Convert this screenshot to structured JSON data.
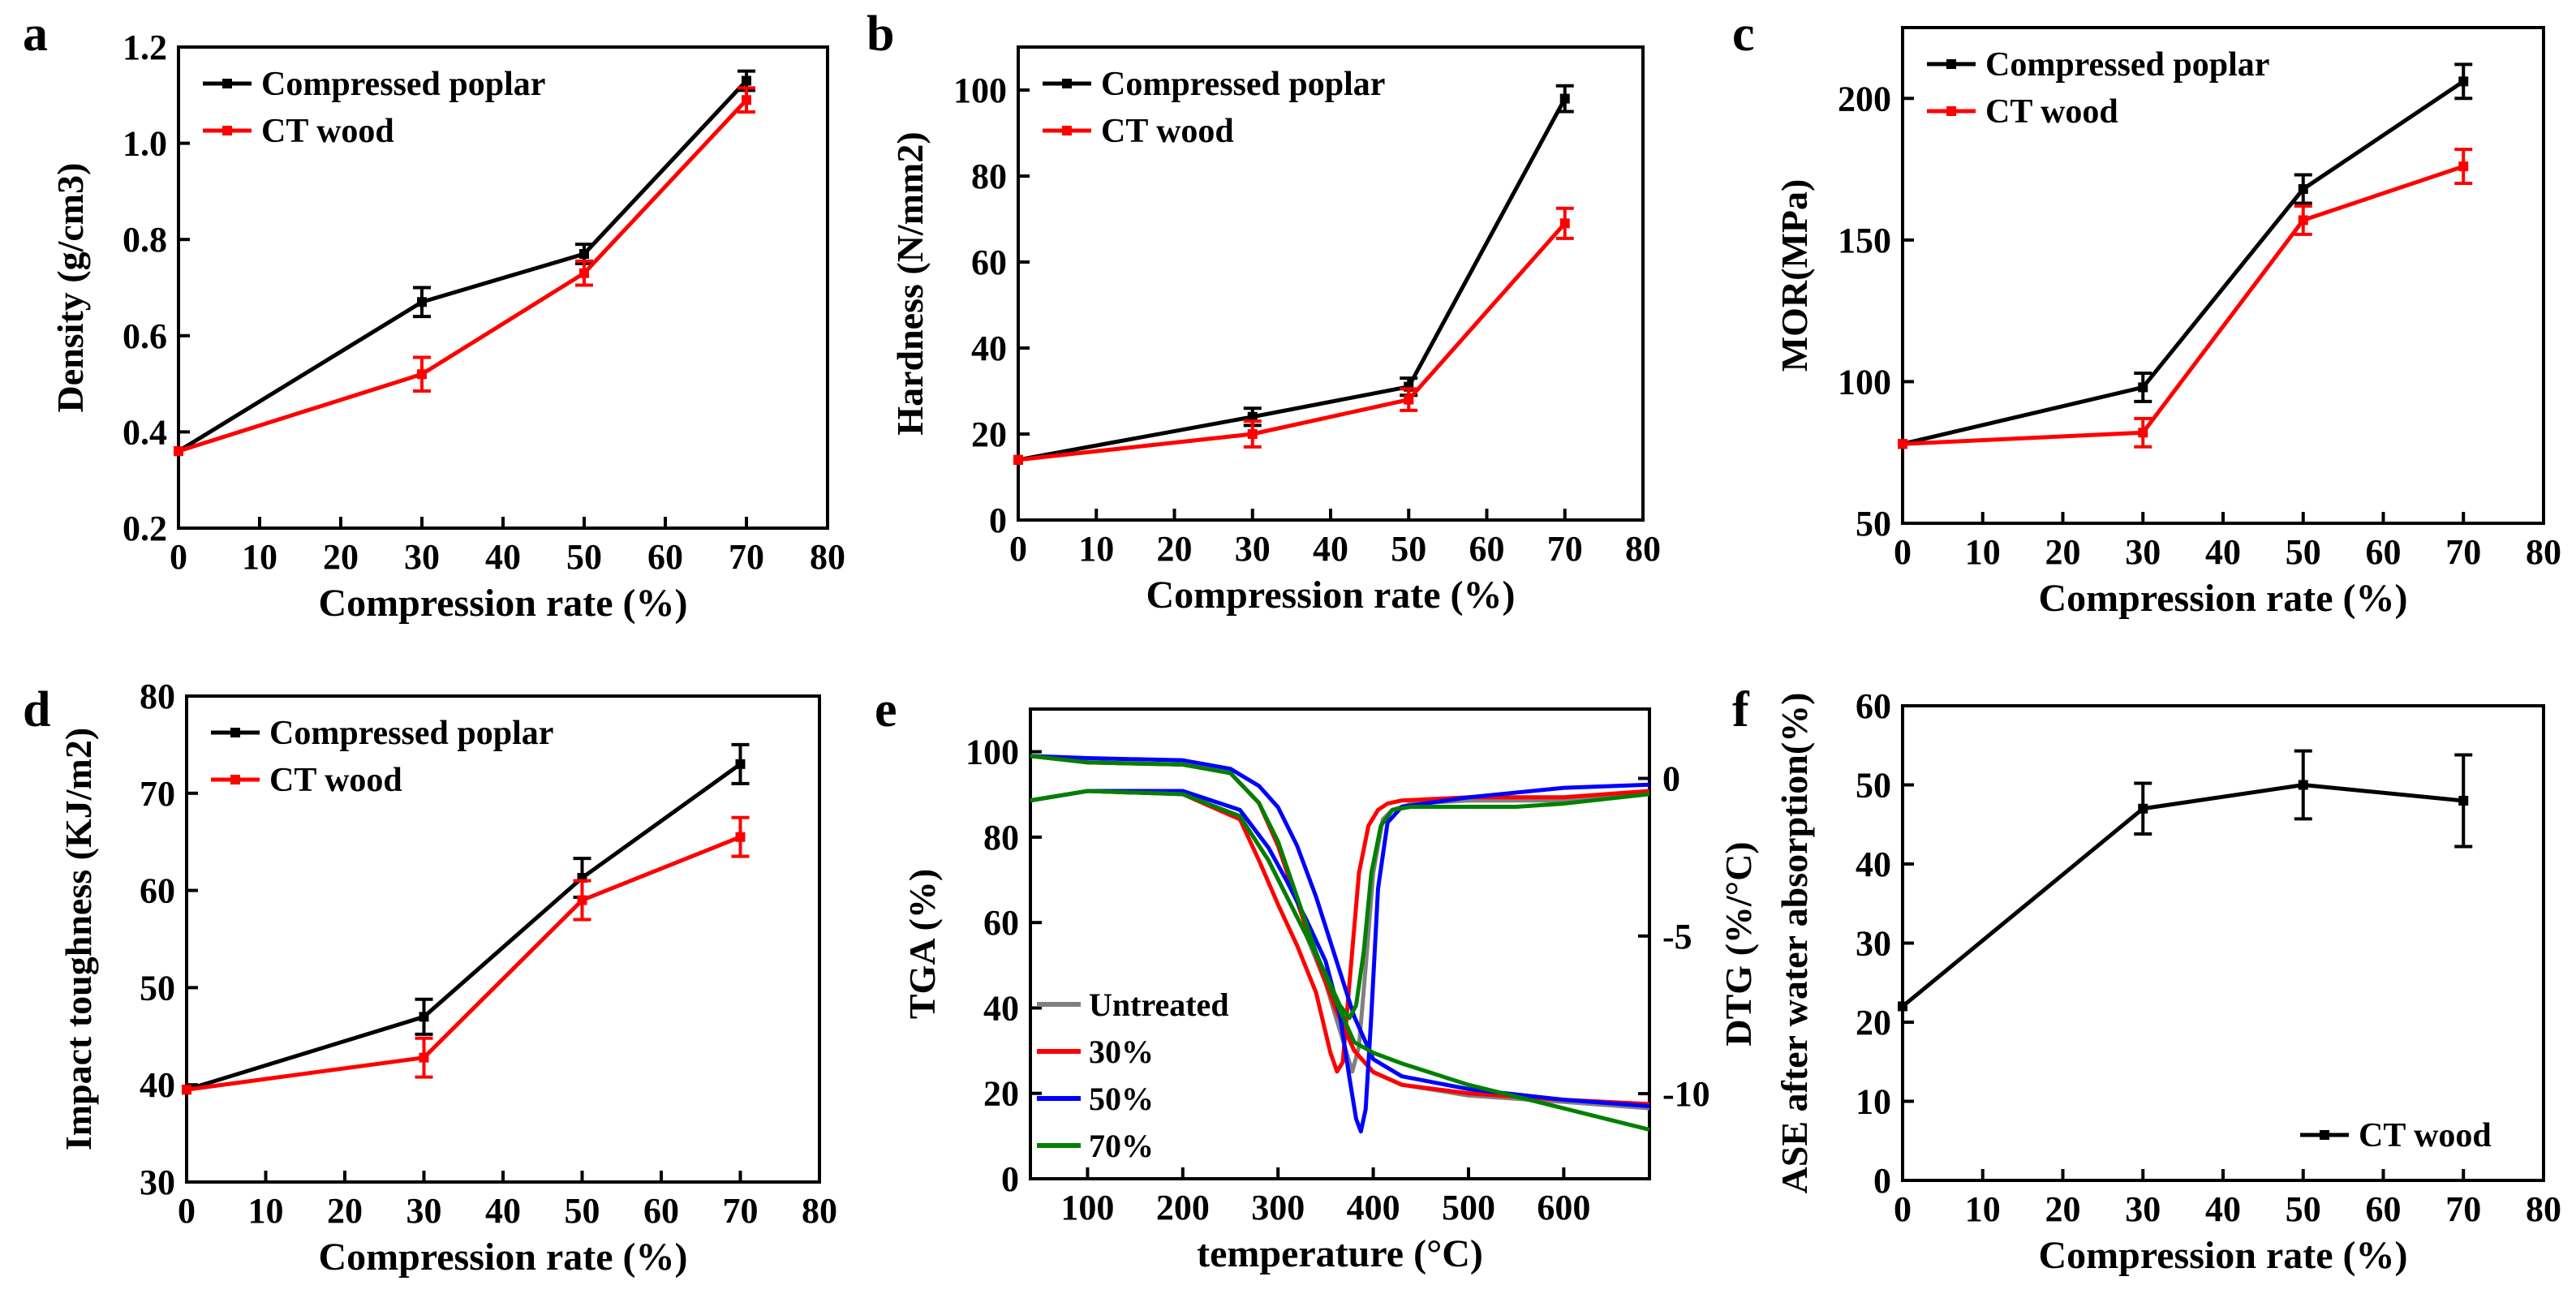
{
  "colors": {
    "black": "#000000",
    "red": "#ff0000",
    "gray": "#808080",
    "blue": "#0000ff",
    "green": "#008000"
  },
  "chart_data": [
    {
      "panel": "a",
      "type": "line",
      "xlabel": "Compression rate (%)",
      "ylabel": "Density (g/cm3)",
      "xlim": [
        0,
        80
      ],
      "ylim": [
        0.2,
        1.2
      ],
      "xticks": [
        "0",
        "10",
        "20",
        "30",
        "40",
        "50",
        "60",
        "70",
        "80"
      ],
      "yticks": [
        "0.2",
        "0.4",
        "0.6",
        "0.8",
        "1.0",
        "1.2"
      ],
      "legend_position": "top-left",
      "series": [
        {
          "name": "Compressed poplar",
          "color": "black",
          "x": [
            0,
            30,
            50,
            70
          ],
          "y": [
            0.36,
            0.67,
            0.77,
            1.13
          ],
          "err": [
            0,
            0.03,
            0.02,
            0.02
          ]
        },
        {
          "name": "CT wood",
          "color": "red",
          "x": [
            0,
            30,
            50,
            70
          ],
          "y": [
            0.36,
            0.52,
            0.73,
            1.09
          ],
          "err": [
            0,
            0.035,
            0.025,
            0.025
          ]
        }
      ]
    },
    {
      "panel": "b",
      "type": "line",
      "xlabel": "Compression rate (%)",
      "ylabel": "Hardness (N/mm2)",
      "xlim": [
        0,
        80
      ],
      "ylim": [
        0,
        110
      ],
      "xticks": [
        "0",
        "10",
        "20",
        "30",
        "40",
        "50",
        "60",
        "70",
        "80"
      ],
      "yticks": [
        "0",
        "20",
        "40",
        "60",
        "80",
        "100"
      ],
      "legend_position": "top-left",
      "series": [
        {
          "name": "Compressed poplar",
          "color": "black",
          "x": [
            0,
            30,
            50,
            70
          ],
          "y": [
            14,
            24,
            31,
            98
          ],
          "err": [
            0,
            2,
            2,
            3
          ]
        },
        {
          "name": "CT wood",
          "color": "red",
          "x": [
            0,
            30,
            50,
            70
          ],
          "y": [
            14,
            20,
            28,
            69
          ],
          "err": [
            0,
            3,
            2.5,
            3.5
          ]
        }
      ]
    },
    {
      "panel": "c",
      "type": "line",
      "xlabel": "Compression rate (%)",
      "ylabel": "MOR(MPa)",
      "xlim": [
        0,
        80
      ],
      "ylim": [
        50,
        225
      ],
      "xticks": [
        "0",
        "10",
        "20",
        "30",
        "40",
        "50",
        "60",
        "70",
        "80"
      ],
      "yticks": [
        "50",
        "100",
        "150",
        "200"
      ],
      "legend_position": "top-left",
      "series": [
        {
          "name": "Compressed poplar",
          "color": "black",
          "x": [
            0,
            30,
            50,
            70
          ],
          "y": [
            78,
            98,
            168,
            206
          ],
          "err": [
            0,
            5,
            5,
            6
          ]
        },
        {
          "name": "CT wood",
          "color": "red",
          "x": [
            0,
            30,
            50,
            70
          ],
          "y": [
            78,
            82,
            157,
            176
          ],
          "err": [
            0,
            5,
            5,
            6
          ]
        }
      ]
    },
    {
      "panel": "d",
      "type": "line",
      "xlabel": "Compression rate (%)",
      "ylabel": "Impact toughness (KJ/m2)",
      "xlim": [
        0,
        80
      ],
      "ylim": [
        30,
        80
      ],
      "xticks": [
        "0",
        "10",
        "20",
        "30",
        "40",
        "50",
        "60",
        "70",
        "80"
      ],
      "yticks": [
        "30",
        "40",
        "50",
        "60",
        "70",
        "80"
      ],
      "legend_position": "top-left",
      "series": [
        {
          "name": "Compressed poplar",
          "color": "black",
          "x": [
            0,
            30,
            50,
            70
          ],
          "y": [
            39.5,
            47,
            61.3,
            73
          ],
          "err": [
            0,
            1.8,
            2,
            2
          ]
        },
        {
          "name": "CT wood",
          "color": "red",
          "x": [
            0,
            30,
            50,
            70
          ],
          "y": [
            39.5,
            42.8,
            59,
            65.5
          ],
          "err": [
            0,
            2,
            2,
            2
          ]
        }
      ]
    },
    {
      "panel": "e",
      "type": "line",
      "xlabel": "temperature (°C)",
      "ylabel": "TGA (%)",
      "ylabel_right": "DTG (%/°C)",
      "xlim": [
        40,
        690
      ],
      "ylim": [
        0,
        110
      ],
      "ylim_right": [
        -12.7,
        2.2
      ],
      "xticks": [
        "100",
        "200",
        "300",
        "400",
        "500",
        "600"
      ],
      "yticks": [
        "0",
        "20",
        "40",
        "60",
        "80",
        "100"
      ],
      "yticks_right": [
        "0",
        "-5",
        "-10"
      ],
      "legend_position": "bottom-left",
      "series": [
        {
          "name": "Untreated",
          "color": "gray",
          "tga_x": [
            40,
            100,
            200,
            250,
            280,
            300,
            320,
            340,
            360,
            380,
            400,
            430,
            500,
            600,
            690
          ],
          "tga_y": [
            99,
            97.5,
            97,
            95,
            88,
            78,
            65,
            52,
            40,
            30,
            25,
            22,
            19.5,
            18,
            16.5
          ],
          "dtg_x": [
            40,
            100,
            200,
            260,
            290,
            310,
            330,
            350,
            365,
            378,
            385,
            392,
            400,
            410,
            420,
            440,
            500,
            600,
            690
          ],
          "dtg_y": [
            -0.7,
            -0.4,
            -0.5,
            -1.2,
            -2.6,
            -3.8,
            -5,
            -6.5,
            -8,
            -9.3,
            -8.5,
            -6,
            -3,
            -1.3,
            -1,
            -0.8,
            -0.7,
            -0.7,
            -0.4
          ]
        },
        {
          "name": "30%",
          "color": "red",
          "tga_x": [
            40,
            100,
            200,
            250,
            280,
            300,
            320,
            340,
            360,
            380,
            400,
            430,
            500,
            600,
            690
          ],
          "tga_y": [
            99,
            97.5,
            97,
            95,
            88,
            78,
            65,
            52,
            40,
            30,
            25,
            22,
            20,
            18.5,
            17.5
          ],
          "dtg_x": [
            40,
            100,
            200,
            260,
            280,
            300,
            320,
            340,
            355,
            362,
            368,
            375,
            385,
            395,
            405,
            415,
            430,
            500,
            600,
            690
          ],
          "dtg_y": [
            -0.7,
            -0.4,
            -0.5,
            -1.3,
            -2.6,
            -4,
            -5.3,
            -6.8,
            -8.7,
            -9.3,
            -9,
            -6.5,
            -3,
            -1.5,
            -1,
            -0.8,
            -0.7,
            -0.6,
            -0.6,
            -0.4
          ]
        },
        {
          "name": "50%",
          "color": "blue",
          "tga_x": [
            40,
            100,
            200,
            250,
            280,
            300,
            320,
            340,
            360,
            380,
            390,
            400,
            430,
            500,
            600,
            690
          ],
          "tga_y": [
            99,
            98.5,
            98,
            96,
            92,
            87,
            78,
            66,
            52,
            38,
            33,
            28,
            24,
            21,
            18.5,
            17
          ],
          "dtg_x": [
            40,
            100,
            200,
            260,
            290,
            310,
            330,
            350,
            365,
            375,
            382,
            387,
            392,
            398,
            405,
            415,
            430,
            500,
            600,
            690
          ],
          "dtg_y": [
            -0.7,
            -0.4,
            -0.4,
            -1,
            -2.2,
            -3.3,
            -4.5,
            -5.8,
            -7.5,
            -9.5,
            -10.8,
            -11.2,
            -10.5,
            -7.5,
            -3.5,
            -1.4,
            -0.9,
            -0.6,
            -0.3,
            -0.2
          ]
        },
        {
          "name": "70%",
          "color": "green",
          "tga_x": [
            40,
            100,
            200,
            250,
            280,
            300,
            320,
            340,
            360,
            380,
            400,
            430,
            500,
            600,
            690
          ],
          "tga_y": [
            99,
            97.5,
            97,
            95,
            88,
            79,
            66,
            53,
            42,
            32,
            29.5,
            27,
            22,
            16.5,
            11.5
          ],
          "dtg_x": [
            40,
            100,
            200,
            260,
            290,
            310,
            330,
            350,
            365,
            375,
            382,
            390,
            398,
            408,
            420,
            440,
            500,
            550,
            600,
            690
          ],
          "dtg_y": [
            -0.7,
            -0.4,
            -0.5,
            -1.2,
            -2.6,
            -3.8,
            -5,
            -6.2,
            -7.2,
            -7.6,
            -7.2,
            -5.5,
            -3,
            -1.5,
            -1,
            -0.9,
            -0.9,
            -0.9,
            -0.8,
            -0.5
          ]
        }
      ]
    },
    {
      "panel": "f",
      "type": "line",
      "xlabel": "Compression rate (%)",
      "ylabel": "ASE after water absorption(%)",
      "xlim": [
        0,
        80
      ],
      "ylim": [
        0,
        60
      ],
      "xticks": [
        "0",
        "10",
        "20",
        "30",
        "40",
        "50",
        "60",
        "70",
        "80"
      ],
      "yticks": [
        "0",
        "10",
        "20",
        "30",
        "40",
        "50",
        "60"
      ],
      "legend_position": "bottom-right",
      "series": [
        {
          "name": "CT wood",
          "color": "black",
          "x": [
            0,
            30,
            50,
            70
          ],
          "y": [
            22,
            47,
            50,
            48
          ],
          "err": [
            0,
            3.2,
            4.3,
            5.8
          ]
        }
      ]
    }
  ]
}
